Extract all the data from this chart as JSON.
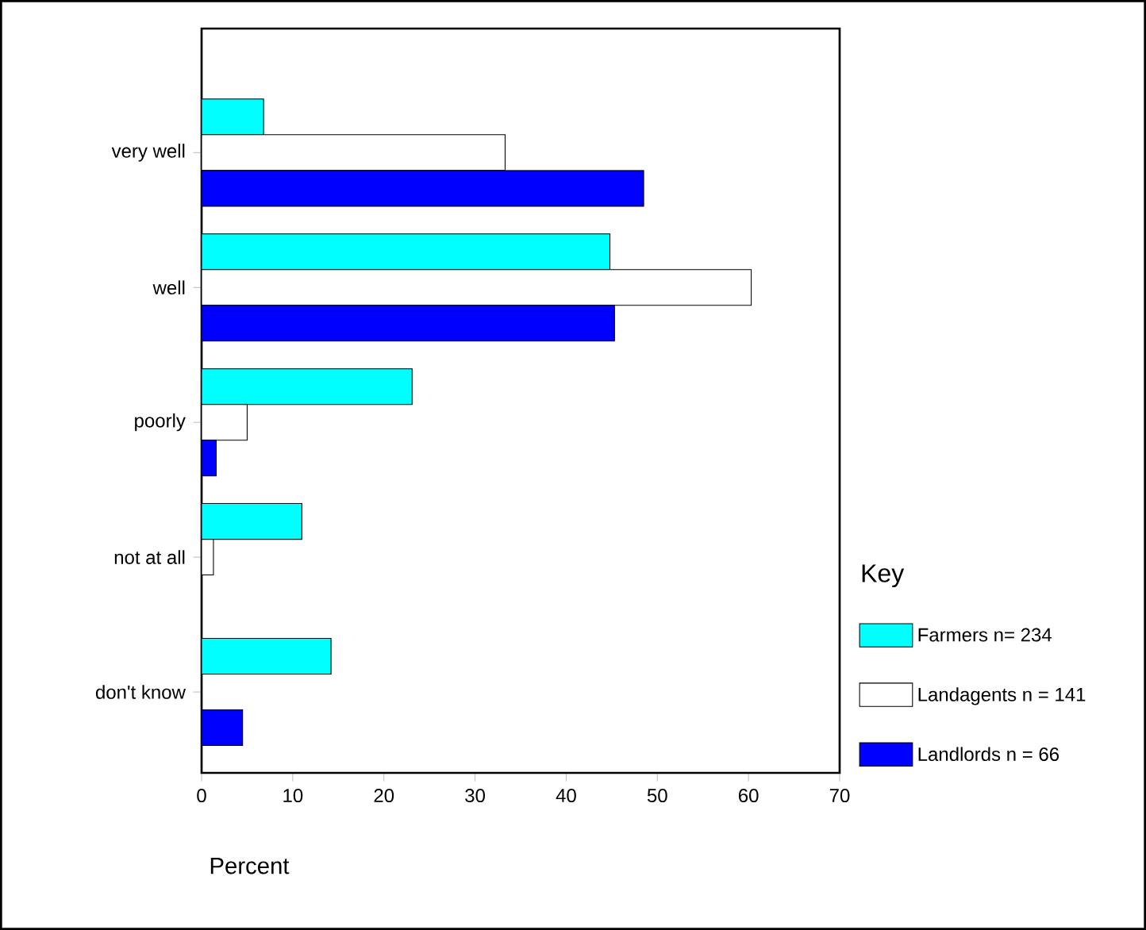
{
  "chart_data": {
    "type": "bar",
    "orientation": "horizontal",
    "xlabel": "Percent",
    "legend_title": "Key",
    "legend": "right",
    "grid": false,
    "categories": [
      "very well",
      "well",
      "poorly",
      "not at all",
      "don't know"
    ],
    "xlim": [
      0,
      70
    ],
    "xticks": [
      0,
      10,
      20,
      30,
      40,
      50,
      60,
      70
    ],
    "series": [
      {
        "name": "Farmers n= 234",
        "color": "#00ffff",
        "values": [
          6.8,
          44.8,
          23.1,
          11.0,
          14.2
        ]
      },
      {
        "name": "Landagents n = 141",
        "color": "#ffffff",
        "values": [
          33.3,
          60.3,
          5.0,
          1.3,
          null
        ]
      },
      {
        "name": "Landlords n = 66",
        "color": "#0000ff",
        "values": [
          48.5,
          45.3,
          1.6,
          null,
          4.5
        ]
      }
    ]
  }
}
